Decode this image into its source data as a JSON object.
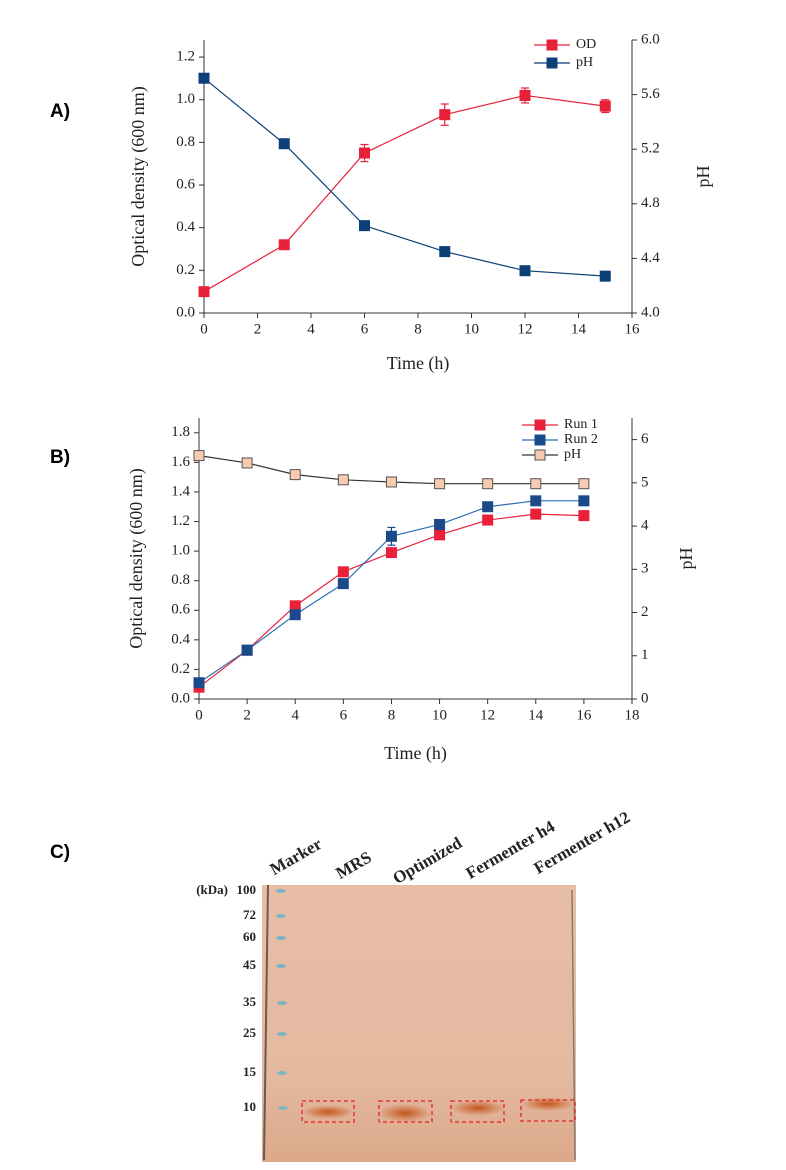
{
  "chart_data": [
    {
      "type": "line",
      "panel_label": "A)",
      "xlabel": "Time (h)",
      "ylabel": "Optical density (600 nm)",
      "y2label": "pH",
      "xlim": [
        0,
        16
      ],
      "xticks": [
        0,
        2,
        4,
        6,
        8,
        10,
        12,
        14,
        16
      ],
      "ylim": [
        0,
        1.28
      ],
      "yticks": [
        {
          "value": 0,
          "label": "0.0"
        },
        0.2,
        0.4,
        0.6,
        0.8,
        {
          "value": 1,
          "label": "1.0"
        },
        1.2
      ],
      "y2lim": [
        4,
        6
      ],
      "y2ticks": [
        {
          "value": 4,
          "label": "4.0"
        },
        4.4,
        4.8,
        5.2,
        5.6,
        {
          "value": 6,
          "label": "6.0"
        }
      ],
      "legend": "upper right",
      "series": [
        {
          "name": "OD",
          "color": "#e8203a",
          "x": [
            0,
            3,
            6,
            9,
            12,
            15
          ],
          "values": [
            0.1,
            0.32,
            0.75,
            0.93,
            1.02,
            0.97
          ],
          "errors": [
            0,
            0,
            0.04,
            0.05,
            0.035,
            0.03
          ]
        },
        {
          "name": "pH",
          "color": "#0d3f78",
          "axis": "y2",
          "x": [
            0,
            3,
            6,
            9,
            12,
            15
          ],
          "values": [
            5.72,
            5.24,
            4.64,
            4.45,
            4.31,
            4.27
          ]
        }
      ]
    },
    {
      "type": "line",
      "panel_label": "B)",
      "xlabel": "Time (h)",
      "ylabel": "Optical density (600 nm)",
      "y2label": "pH",
      "xlim": [
        0,
        18
      ],
      "xticks": [
        0,
        2,
        4,
        6,
        8,
        10,
        12,
        14,
        16,
        18
      ],
      "ylim": [
        0,
        1.9
      ],
      "yticks": [
        {
          "value": 0,
          "label": "0.0"
        },
        0.2,
        0.4,
        0.6,
        0.8,
        {
          "value": 1,
          "label": "1.0"
        },
        1.2,
        1.4,
        1.6,
        1.8
      ],
      "y2lim": [
        0,
        6.5
      ],
      "y2ticks": [
        0,
        1,
        2,
        3,
        4,
        5,
        6
      ],
      "legend": "upper right",
      "series": [
        {
          "name": "Run 1",
          "color": "#e8203a",
          "x": [
            0,
            2,
            4,
            6,
            8,
            10,
            12,
            14,
            16
          ],
          "values": [
            0.08,
            0.33,
            0.63,
            0.86,
            0.99,
            1.11,
            1.21,
            1.25,
            1.24
          ]
        },
        {
          "name": "Run 2",
          "color": "#1a4a8a",
          "line_color": "#2c6fb5",
          "x": [
            0,
            2,
            4,
            6,
            8,
            10,
            12,
            14,
            16
          ],
          "values": [
            0.11,
            0.33,
            0.57,
            0.78,
            1.1,
            1.18,
            1.3,
            1.34,
            1.34
          ],
          "errors": [
            0,
            0,
            0,
            0,
            0.06,
            0.03,
            0.03,
            0.03,
            0.02
          ]
        },
        {
          "name": "pH",
          "color": "#f8cbb0",
          "edge_color": "#555555",
          "line_color": "#333333",
          "axis": "y2",
          "x": [
            0,
            2,
            4,
            6,
            8,
            10,
            12,
            14,
            16
          ],
          "values": [
            5.63,
            5.46,
            5.19,
            5.07,
            5.02,
            4.98,
            4.98,
            4.98,
            4.98
          ]
        }
      ]
    }
  ],
  "gel": {
    "panel_label": "C)",
    "unit": "(kDa)",
    "markers": [
      100,
      72,
      60,
      45,
      35,
      25,
      15,
      10
    ],
    "lanes": [
      "Marker",
      "MRS",
      "Optimized",
      "Fermenter h4",
      "Fermenter h12"
    ]
  }
}
